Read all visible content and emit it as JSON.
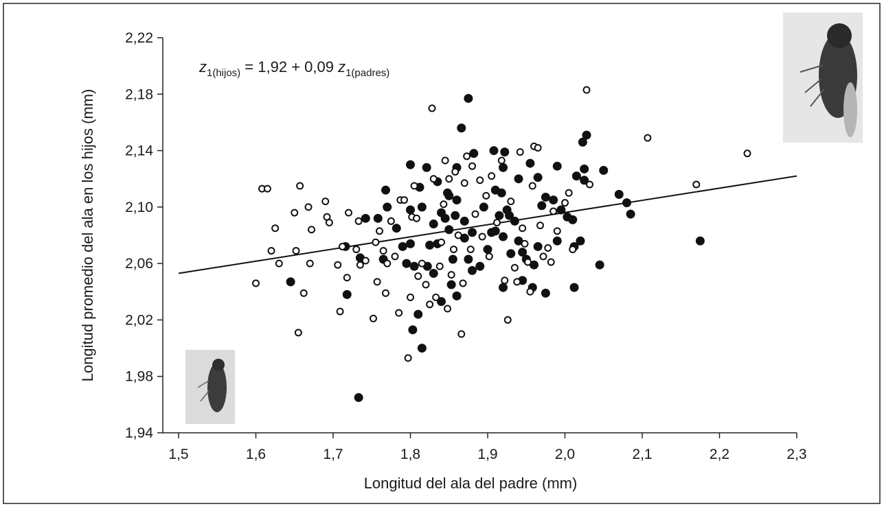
{
  "chart_data": {
    "type": "scatter",
    "xlabel": "Longitud del ala del padre (mm)",
    "ylabel": "Longitud promedio del ala en los hijos (mm)",
    "annotation": [
      "z",
      "1(hijos)",
      " = 1,92 + 0,09 ",
      "z",
      "1(padres)"
    ],
    "xlim": [
      1.5,
      2.3
    ],
    "ylim": [
      1.94,
      2.22
    ],
    "xticks": [
      {
        "value": 1.5,
        "label": "1,5"
      },
      {
        "value": 1.6,
        "label": "1,6"
      },
      {
        "value": 1.7,
        "label": "1,7"
      },
      {
        "value": 1.8,
        "label": "1,8"
      },
      {
        "value": 1.9,
        "label": "1,9"
      },
      {
        "value": 2.0,
        "label": "2,0"
      },
      {
        "value": 2.1,
        "label": "2,1"
      },
      {
        "value": 2.2,
        "label": "2,2"
      },
      {
        "value": 2.3,
        "label": "2,3"
      }
    ],
    "yticks": [
      {
        "value": 1.94,
        "label": "1,94"
      },
      {
        "value": 1.98,
        "label": "1,98"
      },
      {
        "value": 2.02,
        "label": "2,02"
      },
      {
        "value": 2.06,
        "label": "2,06"
      },
      {
        "value": 2.1,
        "label": "2,10"
      },
      {
        "value": 2.14,
        "label": "2,14"
      },
      {
        "value": 2.18,
        "label": "2,18"
      },
      {
        "value": 2.22,
        "label": "2,22"
      }
    ],
    "trend_line": {
      "x": [
        1.5,
        2.3
      ],
      "y": [
        2.053,
        2.122
      ],
      "color": "#111111"
    },
    "series": [
      {
        "marker": "filled",
        "color": "#111111",
        "x": [
          1.733,
          1.815,
          1.803,
          1.81,
          1.718,
          1.645,
          1.735,
          1.716,
          1.742,
          1.758,
          1.77,
          1.768,
          1.8,
          1.821,
          1.835,
          1.848,
          1.875,
          1.866,
          1.86,
          1.882,
          1.908,
          1.922,
          1.92,
          1.94,
          1.955,
          1.965,
          1.99,
          2.028,
          2.023,
          2.025,
          2.05,
          2.015,
          2.025,
          2.07,
          2.08,
          2.085,
          2.175,
          2.045,
          2.012,
          2.02,
          2.012,
          1.99,
          1.975,
          1.958,
          1.945,
          1.92,
          1.86,
          1.853,
          1.84,
          1.805,
          1.795,
          1.79,
          1.8,
          1.782,
          1.765,
          1.8,
          1.812,
          1.815,
          1.83,
          1.84,
          1.845,
          1.85,
          1.858,
          1.87,
          1.875,
          1.88,
          1.89,
          1.9,
          1.905,
          1.91,
          1.915,
          1.925,
          1.928,
          1.935,
          1.94,
          1.945,
          1.95,
          1.96,
          1.965,
          1.97,
          1.975,
          1.985,
          1.995,
          2.003,
          2.01,
          1.87,
          1.86,
          1.85,
          1.835,
          1.825,
          1.822,
          1.88,
          1.895,
          1.91,
          1.918,
          1.92,
          1.93,
          1.83,
          1.855
        ],
        "y": [
          1.965,
          2.0,
          2.013,
          2.024,
          2.038,
          2.047,
          2.064,
          2.072,
          2.092,
          2.092,
          2.1,
          2.112,
          2.13,
          2.128,
          2.118,
          2.11,
          2.177,
          2.156,
          2.128,
          2.138,
          2.14,
          2.139,
          2.128,
          2.12,
          2.131,
          2.121,
          2.129,
          2.151,
          2.146,
          2.127,
          2.126,
          2.122,
          2.119,
          2.109,
          2.103,
          2.095,
          2.076,
          2.059,
          2.043,
          2.076,
          2.072,
          2.076,
          2.039,
          2.043,
          2.048,
          2.043,
          2.037,
          2.045,
          2.033,
          2.058,
          2.06,
          2.072,
          2.074,
          2.085,
          2.063,
          2.098,
          2.114,
          2.1,
          2.088,
          2.096,
          2.092,
          2.108,
          2.094,
          2.078,
          2.063,
          2.082,
          2.058,
          2.07,
          2.082,
          2.083,
          2.094,
          2.098,
          2.094,
          2.09,
          2.076,
          2.068,
          2.063,
          2.059,
          2.072,
          2.101,
          2.107,
          2.105,
          2.098,
          2.093,
          2.091,
          2.09,
          2.105,
          2.084,
          2.074,
          2.073,
          2.058,
          2.055,
          2.1,
          2.112,
          2.11,
          2.079,
          2.067,
          2.053,
          2.063
        ]
      },
      {
        "marker": "open",
        "color": "#111111",
        "x": [
          1.6,
          1.608,
          1.615,
          1.62,
          1.625,
          1.63,
          1.65,
          1.652,
          1.655,
          1.657,
          1.662,
          1.668,
          1.67,
          1.672,
          1.69,
          1.692,
          1.695,
          1.706,
          1.709,
          1.712,
          1.718,
          1.72,
          1.73,
          1.733,
          1.735,
          1.742,
          1.752,
          1.755,
          1.757,
          1.76,
          1.765,
          1.768,
          1.77,
          1.775,
          1.78,
          1.785,
          1.787,
          1.792,
          1.797,
          1.8,
          1.802,
          1.805,
          1.808,
          1.81,
          1.815,
          1.82,
          1.825,
          1.828,
          1.83,
          1.833,
          1.838,
          1.84,
          1.843,
          1.845,
          1.848,
          1.85,
          1.853,
          1.856,
          1.858,
          1.862,
          1.866,
          1.868,
          1.87,
          1.873,
          1.878,
          1.88,
          1.884,
          1.89,
          1.893,
          1.898,
          1.902,
          1.905,
          1.912,
          1.918,
          1.922,
          1.926,
          1.93,
          1.935,
          1.938,
          1.942,
          1.945,
          1.948,
          1.952,
          1.955,
          1.958,
          1.96,
          1.965,
          1.968,
          1.972,
          1.978,
          1.982,
          1.985,
          1.99,
          2.0,
          2.005,
          2.01,
          2.028,
          2.032,
          2.107,
          2.17,
          2.236
        ],
        "y": [
          2.046,
          2.113,
          2.113,
          2.069,
          2.085,
          2.06,
          2.096,
          2.069,
          2.011,
          2.115,
          2.039,
          2.1,
          2.06,
          2.084,
          2.104,
          2.093,
          2.089,
          2.059,
          2.026,
          2.072,
          2.05,
          2.096,
          2.07,
          2.09,
          2.059,
          2.062,
          2.021,
          2.075,
          2.047,
          2.083,
          2.069,
          2.039,
          2.06,
          2.09,
          2.065,
          2.025,
          2.105,
          2.105,
          1.993,
          2.036,
          2.093,
          2.115,
          2.092,
          2.051,
          2.06,
          2.045,
          2.031,
          2.17,
          2.12,
          2.036,
          2.058,
          2.075,
          2.102,
          2.133,
          2.028,
          2.12,
          2.052,
          2.07,
          2.125,
          2.08,
          2.01,
          2.046,
          2.117,
          2.136,
          2.07,
          2.129,
          2.095,
          2.119,
          2.079,
          2.108,
          2.065,
          2.122,
          2.089,
          2.133,
          2.048,
          2.02,
          2.104,
          2.057,
          2.047,
          2.139,
          2.085,
          2.074,
          2.061,
          2.04,
          2.115,
          2.143,
          2.142,
          2.087,
          2.065,
          2.071,
          2.061,
          2.097,
          2.083,
          2.103,
          2.11,
          2.07,
          2.183,
          2.116,
          2.149,
          2.116,
          2.138
        ]
      }
    ]
  }
}
